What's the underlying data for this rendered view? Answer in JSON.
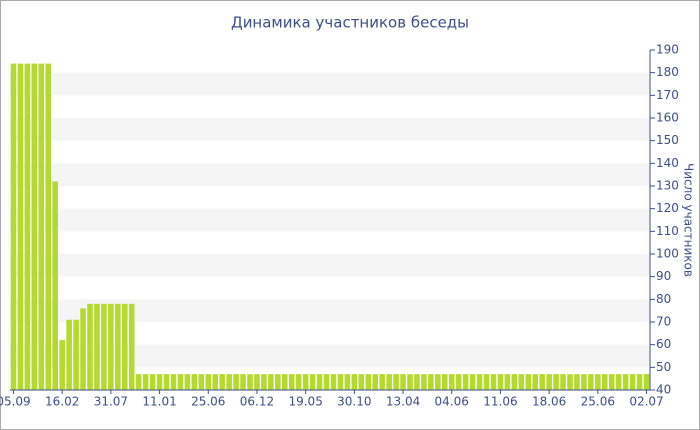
{
  "chart_data": {
    "type": "bar",
    "title": "Динамика участников беседы",
    "y_label": "Число участников",
    "categories": [
      "05.09",
      null,
      null,
      null,
      null,
      null,
      null,
      "16.02",
      null,
      null,
      null,
      null,
      null,
      null,
      "31.07",
      null,
      null,
      null,
      null,
      null,
      null,
      "11.01",
      null,
      null,
      null,
      null,
      null,
      null,
      "25.06",
      null,
      null,
      null,
      null,
      null,
      null,
      "06.12",
      null,
      null,
      null,
      null,
      null,
      null,
      "19.05",
      null,
      null,
      null,
      null,
      null,
      null,
      "30.10",
      null,
      null,
      null,
      null,
      null,
      null,
      "13.04",
      null,
      null,
      null,
      null,
      null,
      null,
      "04.06",
      null,
      null,
      null,
      null,
      null,
      null,
      "11.06",
      null,
      null,
      null,
      null,
      null,
      null,
      "18.06",
      null,
      null,
      null,
      null,
      null,
      null,
      "25.06",
      null,
      null,
      null,
      null,
      null,
      null,
      "02.07"
    ],
    "values": [
      184,
      184,
      184,
      184,
      184,
      184,
      132,
      62,
      71,
      71,
      76,
      78,
      78,
      78,
      78,
      78,
      78,
      78,
      47,
      47,
      47,
      47,
      47,
      47,
      47,
      47,
      47,
      47,
      47,
      47,
      47,
      47,
      47,
      47,
      47,
      47,
      47,
      47,
      47,
      47,
      47,
      47,
      47,
      47,
      47,
      47,
      47,
      47,
      47,
      47,
      47,
      47,
      47,
      47,
      47,
      47,
      47,
      47,
      47,
      47,
      47,
      47,
      47,
      47,
      47,
      47,
      47,
      47,
      47,
      47,
      47,
      47,
      47,
      47,
      47,
      47,
      47,
      47,
      47,
      47,
      47,
      47,
      47,
      47,
      47,
      47,
      47,
      47,
      47,
      47,
      47,
      47
    ],
    "color": "#b5da2f",
    "ylim": [
      40,
      190
    ],
    "yticks": [
      40,
      50,
      60,
      70,
      80,
      90,
      100,
      110,
      120,
      130,
      140,
      150,
      160,
      170,
      180,
      190
    ],
    "grid": true
  }
}
